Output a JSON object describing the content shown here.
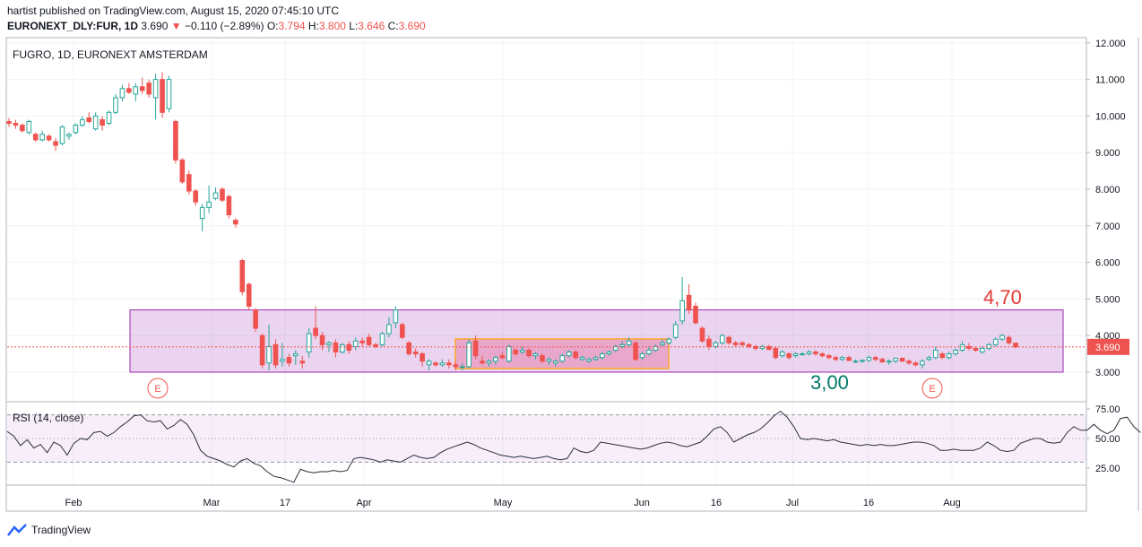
{
  "header": {
    "published": "hartist published on TradingView.com, August 15, 2020 07:45:10 UTC",
    "symbol": "EURONEXT_DLY:FUR, 1D",
    "last": "3.690",
    "change_arrow": "▼",
    "change": "−0.110 (−2.89%)",
    "o_label": "O:",
    "o": "3.794",
    "h_label": "H:",
    "h": "3.800",
    "l_label": "L:",
    "l": "3.646",
    "c_label": "C:",
    "c": "3.690"
  },
  "chart_title": "FUGRO, 1D, EURONEXT AMSTERDAM",
  "annotations": {
    "top": "4,70",
    "bottom": "3,00",
    "earnings": "E"
  },
  "rsi_label": "RSI (14, close)",
  "brand": "TradingView",
  "colors": {
    "up": "#26a69a",
    "down": "#ef5350",
    "rsi": "#2a2e39",
    "box": "#9c27b0",
    "inner_box": "#f9a825",
    "red_text": "#e53935",
    "green_text": "#00796b"
  },
  "chart_data": [
    {
      "type": "candlestick",
      "title": "FUGRO, 1D, EURONEXT AMSTERDAM",
      "y_ticks": [
        "12.000",
        "11.000",
        "10.000",
        "9.000",
        "8.000",
        "7.000",
        "6.000",
        "5.000",
        "4.000",
        "3.000"
      ],
      "ylim": [
        2.6,
        12.0
      ],
      "x_ticks": [
        "Feb",
        "Mar",
        "17",
        "Apr",
        "May",
        "Jun",
        "16",
        "Jul",
        "16",
        "Aug"
      ],
      "price_label": "3.690",
      "support_resistance_zone": [
        3.0,
        4.7
      ],
      "candles": [
        {
          "o": 9.85,
          "h": 9.95,
          "l": 9.7,
          "c": 9.8
        },
        {
          "o": 9.8,
          "h": 9.9,
          "l": 9.65,
          "c": 9.75
        },
        {
          "o": 9.75,
          "h": 9.8,
          "l": 9.55,
          "c": 9.6
        },
        {
          "o": 9.55,
          "h": 9.9,
          "l": 9.5,
          "c": 9.85
        },
        {
          "o": 9.5,
          "h": 9.55,
          "l": 9.3,
          "c": 9.35
        },
        {
          "o": 9.35,
          "h": 9.6,
          "l": 9.3,
          "c": 9.5
        },
        {
          "o": 9.45,
          "h": 9.5,
          "l": 9.3,
          "c": 9.35
        },
        {
          "o": 9.3,
          "h": 9.4,
          "l": 9.05,
          "c": 9.2
        },
        {
          "o": 9.25,
          "h": 9.75,
          "l": 9.2,
          "c": 9.7
        },
        {
          "o": 9.45,
          "h": 9.55,
          "l": 9.35,
          "c": 9.5
        },
        {
          "o": 9.55,
          "h": 9.8,
          "l": 9.5,
          "c": 9.75
        },
        {
          "o": 9.75,
          "h": 10.0,
          "l": 9.7,
          "c": 9.9
        },
        {
          "o": 9.95,
          "h": 10.1,
          "l": 9.8,
          "c": 9.85
        },
        {
          "o": 9.65,
          "h": 10.1,
          "l": 9.6,
          "c": 10.0
        },
        {
          "o": 9.9,
          "h": 10.0,
          "l": 9.6,
          "c": 9.75
        },
        {
          "o": 9.8,
          "h": 10.15,
          "l": 9.75,
          "c": 10.1
        },
        {
          "o": 10.1,
          "h": 10.6,
          "l": 10.05,
          "c": 10.5
        },
        {
          "o": 10.5,
          "h": 10.85,
          "l": 10.4,
          "c": 10.75
        },
        {
          "o": 10.75,
          "h": 10.9,
          "l": 10.6,
          "c": 10.65
        },
        {
          "o": 10.6,
          "h": 10.9,
          "l": 10.4,
          "c": 10.8
        },
        {
          "o": 10.8,
          "h": 11.05,
          "l": 10.6,
          "c": 10.7
        },
        {
          "o": 10.9,
          "h": 11.0,
          "l": 10.5,
          "c": 10.6
        },
        {
          "o": 10.5,
          "h": 11.15,
          "l": 9.9,
          "c": 11.0
        },
        {
          "o": 11.0,
          "h": 11.2,
          "l": 9.95,
          "c": 10.1
        },
        {
          "o": 10.2,
          "h": 11.1,
          "l": 10.1,
          "c": 11.0
        },
        {
          "o": 9.85,
          "h": 9.9,
          "l": 8.7,
          "c": 8.8
        },
        {
          "o": 8.8,
          "h": 8.85,
          "l": 8.15,
          "c": 8.2
        },
        {
          "o": 8.4,
          "h": 8.5,
          "l": 7.85,
          "c": 7.95
        },
        {
          "o": 7.95,
          "h": 8.0,
          "l": 7.55,
          "c": 7.65
        },
        {
          "o": 7.2,
          "h": 7.6,
          "l": 6.85,
          "c": 7.5
        },
        {
          "o": 7.5,
          "h": 8.1,
          "l": 7.35,
          "c": 7.65
        },
        {
          "o": 7.75,
          "h": 8.05,
          "l": 7.7,
          "c": 7.9
        },
        {
          "o": 8.0,
          "h": 8.05,
          "l": 7.65,
          "c": 7.7
        },
        {
          "o": 7.8,
          "h": 7.85,
          "l": 7.2,
          "c": 7.3
        },
        {
          "o": 7.15,
          "h": 7.2,
          "l": 6.95,
          "c": 7.05
        },
        {
          "o": 6.05,
          "h": 6.1,
          "l": 5.1,
          "c": 5.2
        },
        {
          "o": 5.4,
          "h": 5.45,
          "l": 4.7,
          "c": 4.8
        },
        {
          "o": 4.7,
          "h": 4.75,
          "l": 4.1,
          "c": 4.2
        },
        {
          "o": 4.0,
          "h": 4.05,
          "l": 3.1,
          "c": 3.2
        },
        {
          "o": 3.25,
          "h": 4.3,
          "l": 3.05,
          "c": 3.7
        },
        {
          "o": 3.75,
          "h": 3.9,
          "l": 3.1,
          "c": 3.2
        },
        {
          "o": 3.3,
          "h": 3.8,
          "l": 3.15,
          "c": 3.35
        },
        {
          "o": 3.4,
          "h": 3.5,
          "l": 3.15,
          "c": 3.25
        },
        {
          "o": 3.45,
          "h": 3.6,
          "l": 3.2,
          "c": 3.5
        },
        {
          "o": 3.3,
          "h": 3.45,
          "l": 3.1,
          "c": 3.25
        },
        {
          "o": 3.55,
          "h": 4.2,
          "l": 3.4,
          "c": 4.05
        },
        {
          "o": 4.2,
          "h": 4.8,
          "l": 3.9,
          "c": 4.0
        },
        {
          "o": 4.0,
          "h": 4.1,
          "l": 3.6,
          "c": 3.75
        },
        {
          "o": 3.75,
          "h": 3.85,
          "l": 3.55,
          "c": 3.8
        },
        {
          "o": 3.8,
          "h": 3.9,
          "l": 3.4,
          "c": 3.55
        },
        {
          "o": 3.55,
          "h": 3.8,
          "l": 3.5,
          "c": 3.75
        },
        {
          "o": 3.75,
          "h": 3.85,
          "l": 3.5,
          "c": 3.6
        },
        {
          "o": 3.7,
          "h": 3.95,
          "l": 3.6,
          "c": 3.85
        },
        {
          "o": 3.85,
          "h": 3.95,
          "l": 3.7,
          "c": 3.8
        },
        {
          "o": 3.95,
          "h": 4.05,
          "l": 3.7,
          "c": 3.75
        },
        {
          "o": 3.75,
          "h": 3.8,
          "l": 3.65,
          "c": 3.7
        },
        {
          "o": 3.75,
          "h": 4.1,
          "l": 3.7,
          "c": 4.05
        },
        {
          "o": 4.05,
          "h": 4.5,
          "l": 3.95,
          "c": 4.3
        },
        {
          "o": 4.35,
          "h": 4.8,
          "l": 4.2,
          "c": 4.7
        },
        {
          "o": 4.3,
          "h": 4.35,
          "l": 3.9,
          "c": 3.95
        },
        {
          "o": 3.8,
          "h": 3.85,
          "l": 3.45,
          "c": 3.5
        },
        {
          "o": 3.55,
          "h": 3.65,
          "l": 3.4,
          "c": 3.5
        },
        {
          "o": 3.5,
          "h": 3.55,
          "l": 3.15,
          "c": 3.3
        },
        {
          "o": 3.2,
          "h": 3.35,
          "l": 3.05,
          "c": 3.3
        },
        {
          "o": 3.25,
          "h": 3.3,
          "l": 3.15,
          "c": 3.2
        },
        {
          "o": 3.2,
          "h": 3.35,
          "l": 3.15,
          "c": 3.25
        },
        {
          "o": 3.25,
          "h": 3.35,
          "l": 3.1,
          "c": 3.2
        },
        {
          "o": 3.2,
          "h": 3.3,
          "l": 3.05,
          "c": 3.15
        },
        {
          "o": 3.15,
          "h": 3.25,
          "l": 3.05,
          "c": 3.15
        },
        {
          "o": 3.15,
          "h": 3.9,
          "l": 3.1,
          "c": 3.8
        },
        {
          "o": 3.85,
          "h": 4.0,
          "l": 3.35,
          "c": 3.45
        },
        {
          "o": 3.3,
          "h": 3.45,
          "l": 3.2,
          "c": 3.25
        },
        {
          "o": 3.25,
          "h": 3.35,
          "l": 3.15,
          "c": 3.3
        },
        {
          "o": 3.3,
          "h": 3.45,
          "l": 3.2,
          "c": 3.4
        },
        {
          "o": 3.45,
          "h": 3.55,
          "l": 3.35,
          "c": 3.4
        },
        {
          "o": 3.3,
          "h": 3.75,
          "l": 3.25,
          "c": 3.7
        },
        {
          "o": 3.6,
          "h": 3.65,
          "l": 3.45,
          "c": 3.5
        },
        {
          "o": 3.55,
          "h": 3.7,
          "l": 3.5,
          "c": 3.6
        },
        {
          "o": 3.6,
          "h": 3.65,
          "l": 3.4,
          "c": 3.45
        },
        {
          "o": 3.45,
          "h": 3.55,
          "l": 3.35,
          "c": 3.5
        },
        {
          "o": 3.45,
          "h": 3.5,
          "l": 3.25,
          "c": 3.3
        },
        {
          "o": 3.3,
          "h": 3.4,
          "l": 3.2,
          "c": 3.35
        },
        {
          "o": 3.25,
          "h": 3.35,
          "l": 3.15,
          "c": 3.3
        },
        {
          "o": 3.3,
          "h": 3.5,
          "l": 3.25,
          "c": 3.45
        },
        {
          "o": 3.45,
          "h": 3.6,
          "l": 3.4,
          "c": 3.55
        },
        {
          "o": 3.55,
          "h": 3.6,
          "l": 3.35,
          "c": 3.4
        },
        {
          "o": 3.35,
          "h": 3.45,
          "l": 3.3,
          "c": 3.4
        },
        {
          "o": 3.3,
          "h": 3.4,
          "l": 3.25,
          "c": 3.35
        },
        {
          "o": 3.35,
          "h": 3.45,
          "l": 3.3,
          "c": 3.4
        },
        {
          "o": 3.4,
          "h": 3.55,
          "l": 3.35,
          "c": 3.5
        },
        {
          "o": 3.5,
          "h": 3.6,
          "l": 3.45,
          "c": 3.55
        },
        {
          "o": 3.6,
          "h": 3.75,
          "l": 3.55,
          "c": 3.7
        },
        {
          "o": 3.7,
          "h": 3.85,
          "l": 3.65,
          "c": 3.75
        },
        {
          "o": 3.75,
          "h": 3.95,
          "l": 3.7,
          "c": 3.85
        },
        {
          "o": 3.8,
          "h": 3.85,
          "l": 3.3,
          "c": 3.35
        },
        {
          "o": 3.4,
          "h": 3.55,
          "l": 3.35,
          "c": 3.5
        },
        {
          "o": 3.5,
          "h": 3.7,
          "l": 3.45,
          "c": 3.6
        },
        {
          "o": 3.6,
          "h": 3.75,
          "l": 3.55,
          "c": 3.7
        },
        {
          "o": 3.75,
          "h": 3.9,
          "l": 3.7,
          "c": 3.8
        },
        {
          "o": 3.8,
          "h": 3.95,
          "l": 3.75,
          "c": 3.9
        },
        {
          "o": 3.95,
          "h": 4.4,
          "l": 3.9,
          "c": 4.3
        },
        {
          "o": 4.4,
          "h": 5.6,
          "l": 4.3,
          "c": 4.95
        },
        {
          "o": 5.1,
          "h": 5.4,
          "l": 4.6,
          "c": 4.7
        },
        {
          "o": 4.8,
          "h": 4.9,
          "l": 4.3,
          "c": 4.35
        },
        {
          "o": 4.2,
          "h": 4.25,
          "l": 3.8,
          "c": 3.85
        },
        {
          "o": 3.9,
          "h": 4.0,
          "l": 3.6,
          "c": 3.7
        },
        {
          "o": 3.7,
          "h": 3.85,
          "l": 3.65,
          "c": 3.8
        },
        {
          "o": 3.8,
          "h": 4.05,
          "l": 3.75,
          "c": 4.0
        },
        {
          "o": 3.95,
          "h": 4.0,
          "l": 3.75,
          "c": 3.8
        },
        {
          "o": 3.8,
          "h": 3.85,
          "l": 3.7,
          "c": 3.75
        },
        {
          "o": 3.8,
          "h": 3.85,
          "l": 3.7,
          "c": 3.75
        },
        {
          "o": 3.75,
          "h": 3.8,
          "l": 3.65,
          "c": 3.7
        },
        {
          "o": 3.7,
          "h": 3.75,
          "l": 3.6,
          "c": 3.65
        },
        {
          "o": 3.65,
          "h": 3.75,
          "l": 3.6,
          "c": 3.7
        },
        {
          "o": 3.7,
          "h": 3.75,
          "l": 3.6,
          "c": 3.62
        },
        {
          "o": 3.65,
          "h": 3.7,
          "l": 3.35,
          "c": 3.4
        },
        {
          "o": 3.45,
          "h": 3.6,
          "l": 3.4,
          "c": 3.55
        },
        {
          "o": 3.5,
          "h": 3.55,
          "l": 3.35,
          "c": 3.4
        },
        {
          "o": 3.45,
          "h": 3.55,
          "l": 3.4,
          "c": 3.5
        },
        {
          "o": 3.5,
          "h": 3.55,
          "l": 3.45,
          "c": 3.5
        },
        {
          "o": 3.5,
          "h": 3.6,
          "l": 3.45,
          "c": 3.55
        },
        {
          "o": 3.55,
          "h": 3.6,
          "l": 3.45,
          "c": 3.5
        },
        {
          "o": 3.5,
          "h": 3.55,
          "l": 3.4,
          "c": 3.45
        },
        {
          "o": 3.45,
          "h": 3.5,
          "l": 3.35,
          "c": 3.4
        },
        {
          "o": 3.4,
          "h": 3.45,
          "l": 3.3,
          "c": 3.35
        },
        {
          "o": 3.35,
          "h": 3.45,
          "l": 3.3,
          "c": 3.4
        },
        {
          "o": 3.4,
          "h": 3.45,
          "l": 3.3,
          "c": 3.32
        },
        {
          "o": 3.3,
          "h": 3.35,
          "l": 3.25,
          "c": 3.3
        },
        {
          "o": 3.3,
          "h": 3.35,
          "l": 3.25,
          "c": 3.32
        },
        {
          "o": 3.32,
          "h": 3.45,
          "l": 3.28,
          "c": 3.4
        },
        {
          "o": 3.4,
          "h": 3.45,
          "l": 3.3,
          "c": 3.35
        },
        {
          "o": 3.35,
          "h": 3.4,
          "l": 3.25,
          "c": 3.28
        },
        {
          "o": 3.28,
          "h": 3.35,
          "l": 3.2,
          "c": 3.3
        },
        {
          "o": 3.3,
          "h": 3.4,
          "l": 3.25,
          "c": 3.38
        },
        {
          "o": 3.38,
          "h": 3.4,
          "l": 3.28,
          "c": 3.3
        },
        {
          "o": 3.3,
          "h": 3.35,
          "l": 3.2,
          "c": 3.25
        },
        {
          "o": 3.25,
          "h": 3.3,
          "l": 3.15,
          "c": 3.2
        },
        {
          "o": 3.2,
          "h": 3.35,
          "l": 3.1,
          "c": 3.3
        },
        {
          "o": 3.35,
          "h": 3.45,
          "l": 3.3,
          "c": 3.4
        },
        {
          "o": 3.4,
          "h": 3.7,
          "l": 3.35,
          "c": 3.6
        },
        {
          "o": 3.5,
          "h": 3.55,
          "l": 3.35,
          "c": 3.4
        },
        {
          "o": 3.4,
          "h": 3.55,
          "l": 3.35,
          "c": 3.5
        },
        {
          "o": 3.5,
          "h": 3.65,
          "l": 3.45,
          "c": 3.6
        },
        {
          "o": 3.6,
          "h": 3.85,
          "l": 3.55,
          "c": 3.75
        },
        {
          "o": 3.7,
          "h": 3.8,
          "l": 3.6,
          "c": 3.65
        },
        {
          "o": 3.65,
          "h": 3.7,
          "l": 3.55,
          "c": 3.6
        },
        {
          "o": 3.55,
          "h": 3.7,
          "l": 3.5,
          "c": 3.65
        },
        {
          "o": 3.65,
          "h": 3.8,
          "l": 3.6,
          "c": 3.75
        },
        {
          "o": 3.75,
          "h": 3.95,
          "l": 3.7,
          "c": 3.9
        },
        {
          "o": 3.9,
          "h": 4.05,
          "l": 3.85,
          "c": 4.0
        },
        {
          "o": 3.95,
          "h": 4.0,
          "l": 3.75,
          "c": 3.8
        },
        {
          "o": 3.794,
          "h": 3.8,
          "l": 3.646,
          "c": 3.69
        }
      ]
    },
    {
      "type": "line",
      "title": "RSI (14, close)",
      "y_ticks": [
        "75.00",
        "50.00",
        "25.00"
      ],
      "ylim": [
        2,
        82
      ],
      "bands": [
        30,
        70
      ],
      "values": [
        56,
        52,
        44,
        49,
        42,
        45,
        38,
        47,
        44,
        36,
        46,
        50,
        49,
        55,
        56,
        52,
        55,
        60,
        64,
        69,
        70,
        65,
        64,
        65,
        58,
        61,
        66,
        62,
        53,
        40,
        35,
        33,
        31,
        28,
        26,
        31,
        33,
        29,
        27,
        22,
        18,
        17,
        15,
        13,
        24,
        22,
        21,
        22,
        22,
        23,
        22,
        23,
        33,
        34,
        33,
        32,
        30,
        32,
        31,
        30,
        33,
        36,
        34,
        33,
        34,
        38,
        41,
        43,
        45,
        47,
        45,
        42,
        40,
        38,
        36,
        35,
        34,
        35,
        34,
        33,
        34,
        35,
        33,
        32,
        33,
        42,
        39,
        38,
        40,
        47,
        46,
        45,
        44,
        43,
        42,
        41,
        42,
        44,
        46,
        47,
        46,
        44,
        43,
        45,
        47,
        52,
        58,
        60,
        55,
        47,
        50,
        53,
        55,
        58,
        63,
        69,
        73,
        68,
        60,
        50,
        49,
        50,
        49,
        48,
        49,
        47,
        46,
        45,
        44,
        45,
        44,
        45,
        44,
        44,
        45,
        46,
        47,
        47,
        46,
        44,
        40,
        40,
        41,
        40,
        40,
        40,
        42,
        47,
        44,
        40,
        39,
        40,
        46,
        48,
        50,
        50,
        47,
        46,
        47,
        55,
        60,
        57,
        57,
        62,
        57,
        54,
        57,
        67,
        68,
        60,
        55
      ]
    }
  ]
}
